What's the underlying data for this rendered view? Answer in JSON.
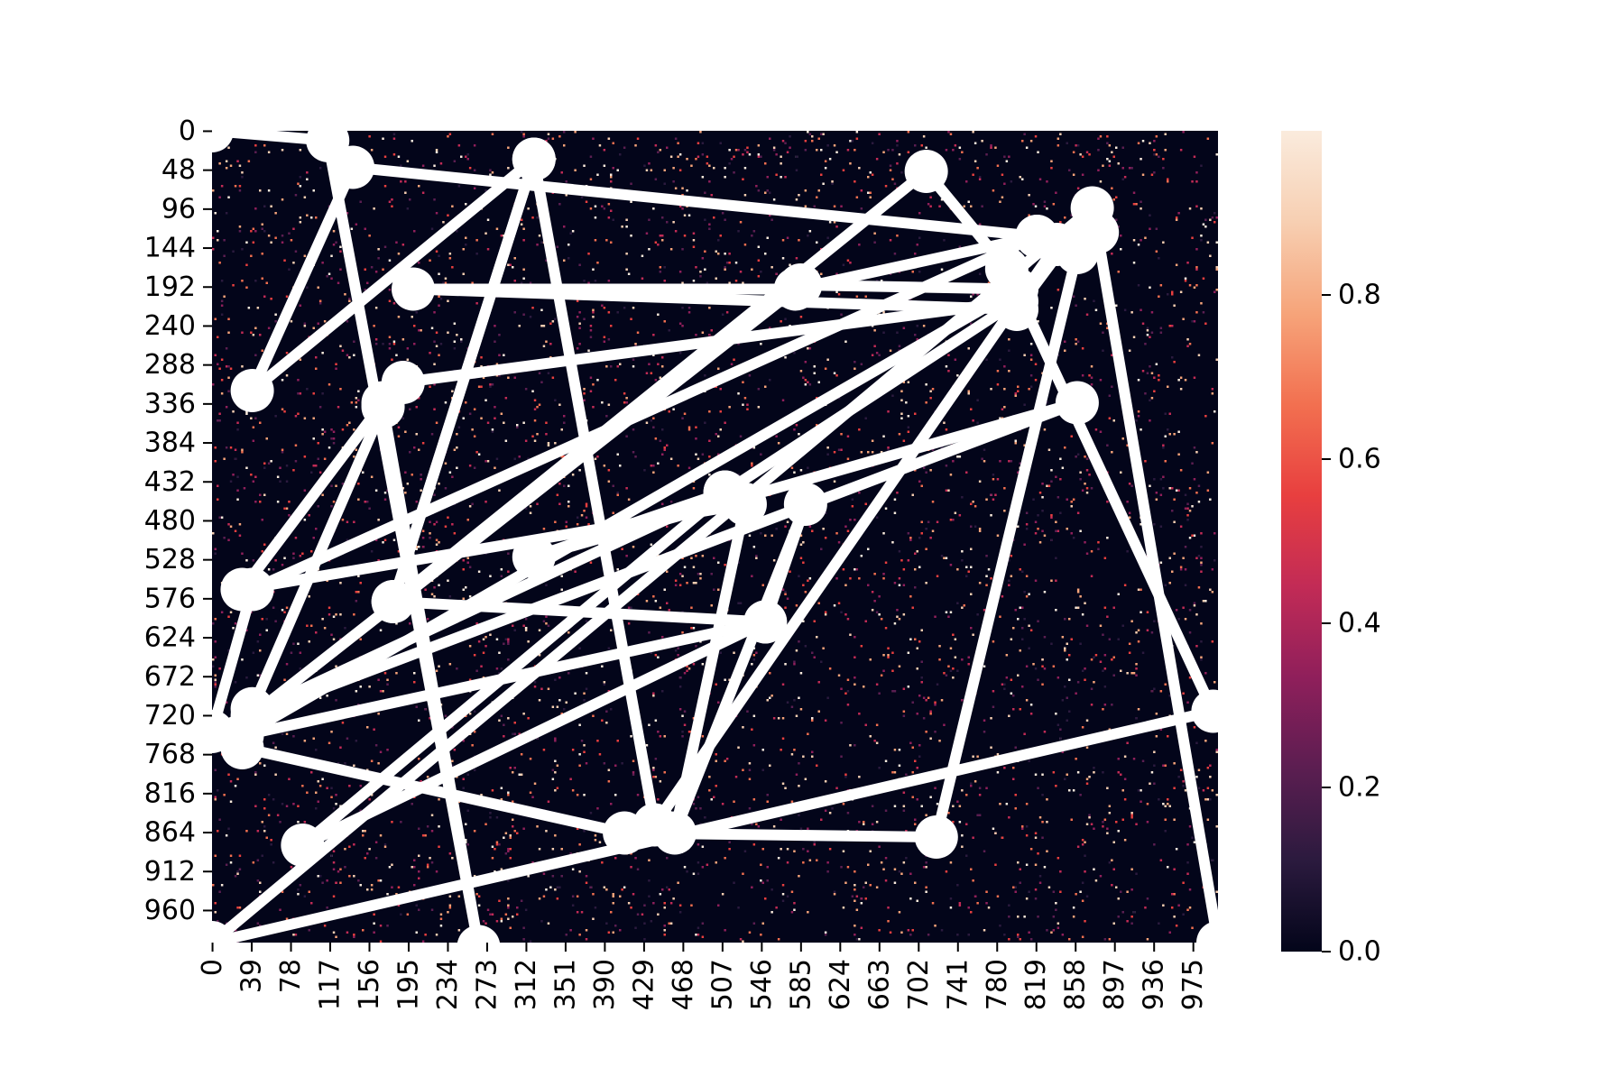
{
  "chart_data": {
    "type": "heatmap",
    "title": "",
    "xlabel": "",
    "ylabel": "",
    "heatmap": {
      "rows": 1000,
      "cols": 1000,
      "xlim": [
        0,
        1000
      ],
      "ylim": [
        0,
        1000
      ],
      "x_ticks": [
        0,
        39,
        78,
        117,
        156,
        195,
        234,
        273,
        312,
        351,
        390,
        429,
        468,
        507,
        546,
        585,
        624,
        663,
        702,
        741,
        780,
        819,
        858,
        897,
        936,
        975
      ],
      "y_ticks": [
        0,
        48,
        96,
        144,
        192,
        240,
        288,
        336,
        384,
        432,
        480,
        528,
        576,
        624,
        672,
        720,
        768,
        816,
        864,
        912,
        960
      ],
      "value_range": [
        0.0,
        1.0
      ],
      "background_value": 0.0,
      "noise_density": 0.03,
      "colormap": "rocket",
      "colormap_stops": [
        "#03051a",
        "#2b1a3e",
        "#5b1e51",
        "#8f1f5b",
        "#c22b56",
        "#e83f3f",
        "#f27050",
        "#f6a47a",
        "#f7cfb2",
        "#faebdd"
      ]
    },
    "colorbar": {
      "ticks": [
        "0.0",
        "0.2",
        "0.4",
        "0.6",
        "0.8"
      ],
      "tick_values": [
        0.0,
        0.2,
        0.4,
        0.6,
        0.8
      ]
    },
    "overlay": {
      "color": "#ffffff",
      "path": [
        [
          0,
          0
        ],
        [
          115,
          12
        ],
        [
          265,
          1005
        ],
        [
          170,
          340
        ],
        [
          40,
          712
        ],
        [
          30,
          760
        ],
        [
          410,
          865
        ],
        [
          720,
          870
        ],
        [
          860,
          150
        ],
        [
          820,
          130
        ],
        [
          140,
          45
        ],
        [
          40,
          320
        ],
        [
          320,
          35
        ],
        [
          180,
          580
        ],
        [
          550,
          605
        ],
        [
          30,
          745
        ],
        [
          800,
          195
        ],
        [
          585,
          190
        ],
        [
          40,
          720
        ],
        [
          860,
          335
        ],
        [
          320,
          525
        ],
        [
          510,
          445
        ],
        [
          800,
          210
        ],
        [
          190,
          310
        ],
        [
          170,
          335
        ],
        [
          30,
          565
        ],
        [
          530,
          460
        ],
        [
          460,
          865
        ],
        [
          590,
          460
        ],
        [
          550,
          605
        ],
        [
          90,
          880
        ],
        [
          510,
          445
        ],
        [
          0,
          740
        ],
        [
          40,
          565
        ],
        [
          820,
          130
        ],
        [
          580,
          195
        ],
        [
          200,
          195
        ],
        [
          800,
          220
        ],
        [
          875,
          95
        ],
        [
          0,
          1000
        ],
        [
          995,
          715
        ],
        [
          790,
          170
        ],
        [
          710,
          50
        ],
        [
          180,
          580
        ],
        [
          320,
          35
        ],
        [
          440,
          855
        ],
        [
          840,
          140
        ],
        [
          880,
          125
        ],
        [
          1000,
          1000
        ]
      ]
    }
  }
}
